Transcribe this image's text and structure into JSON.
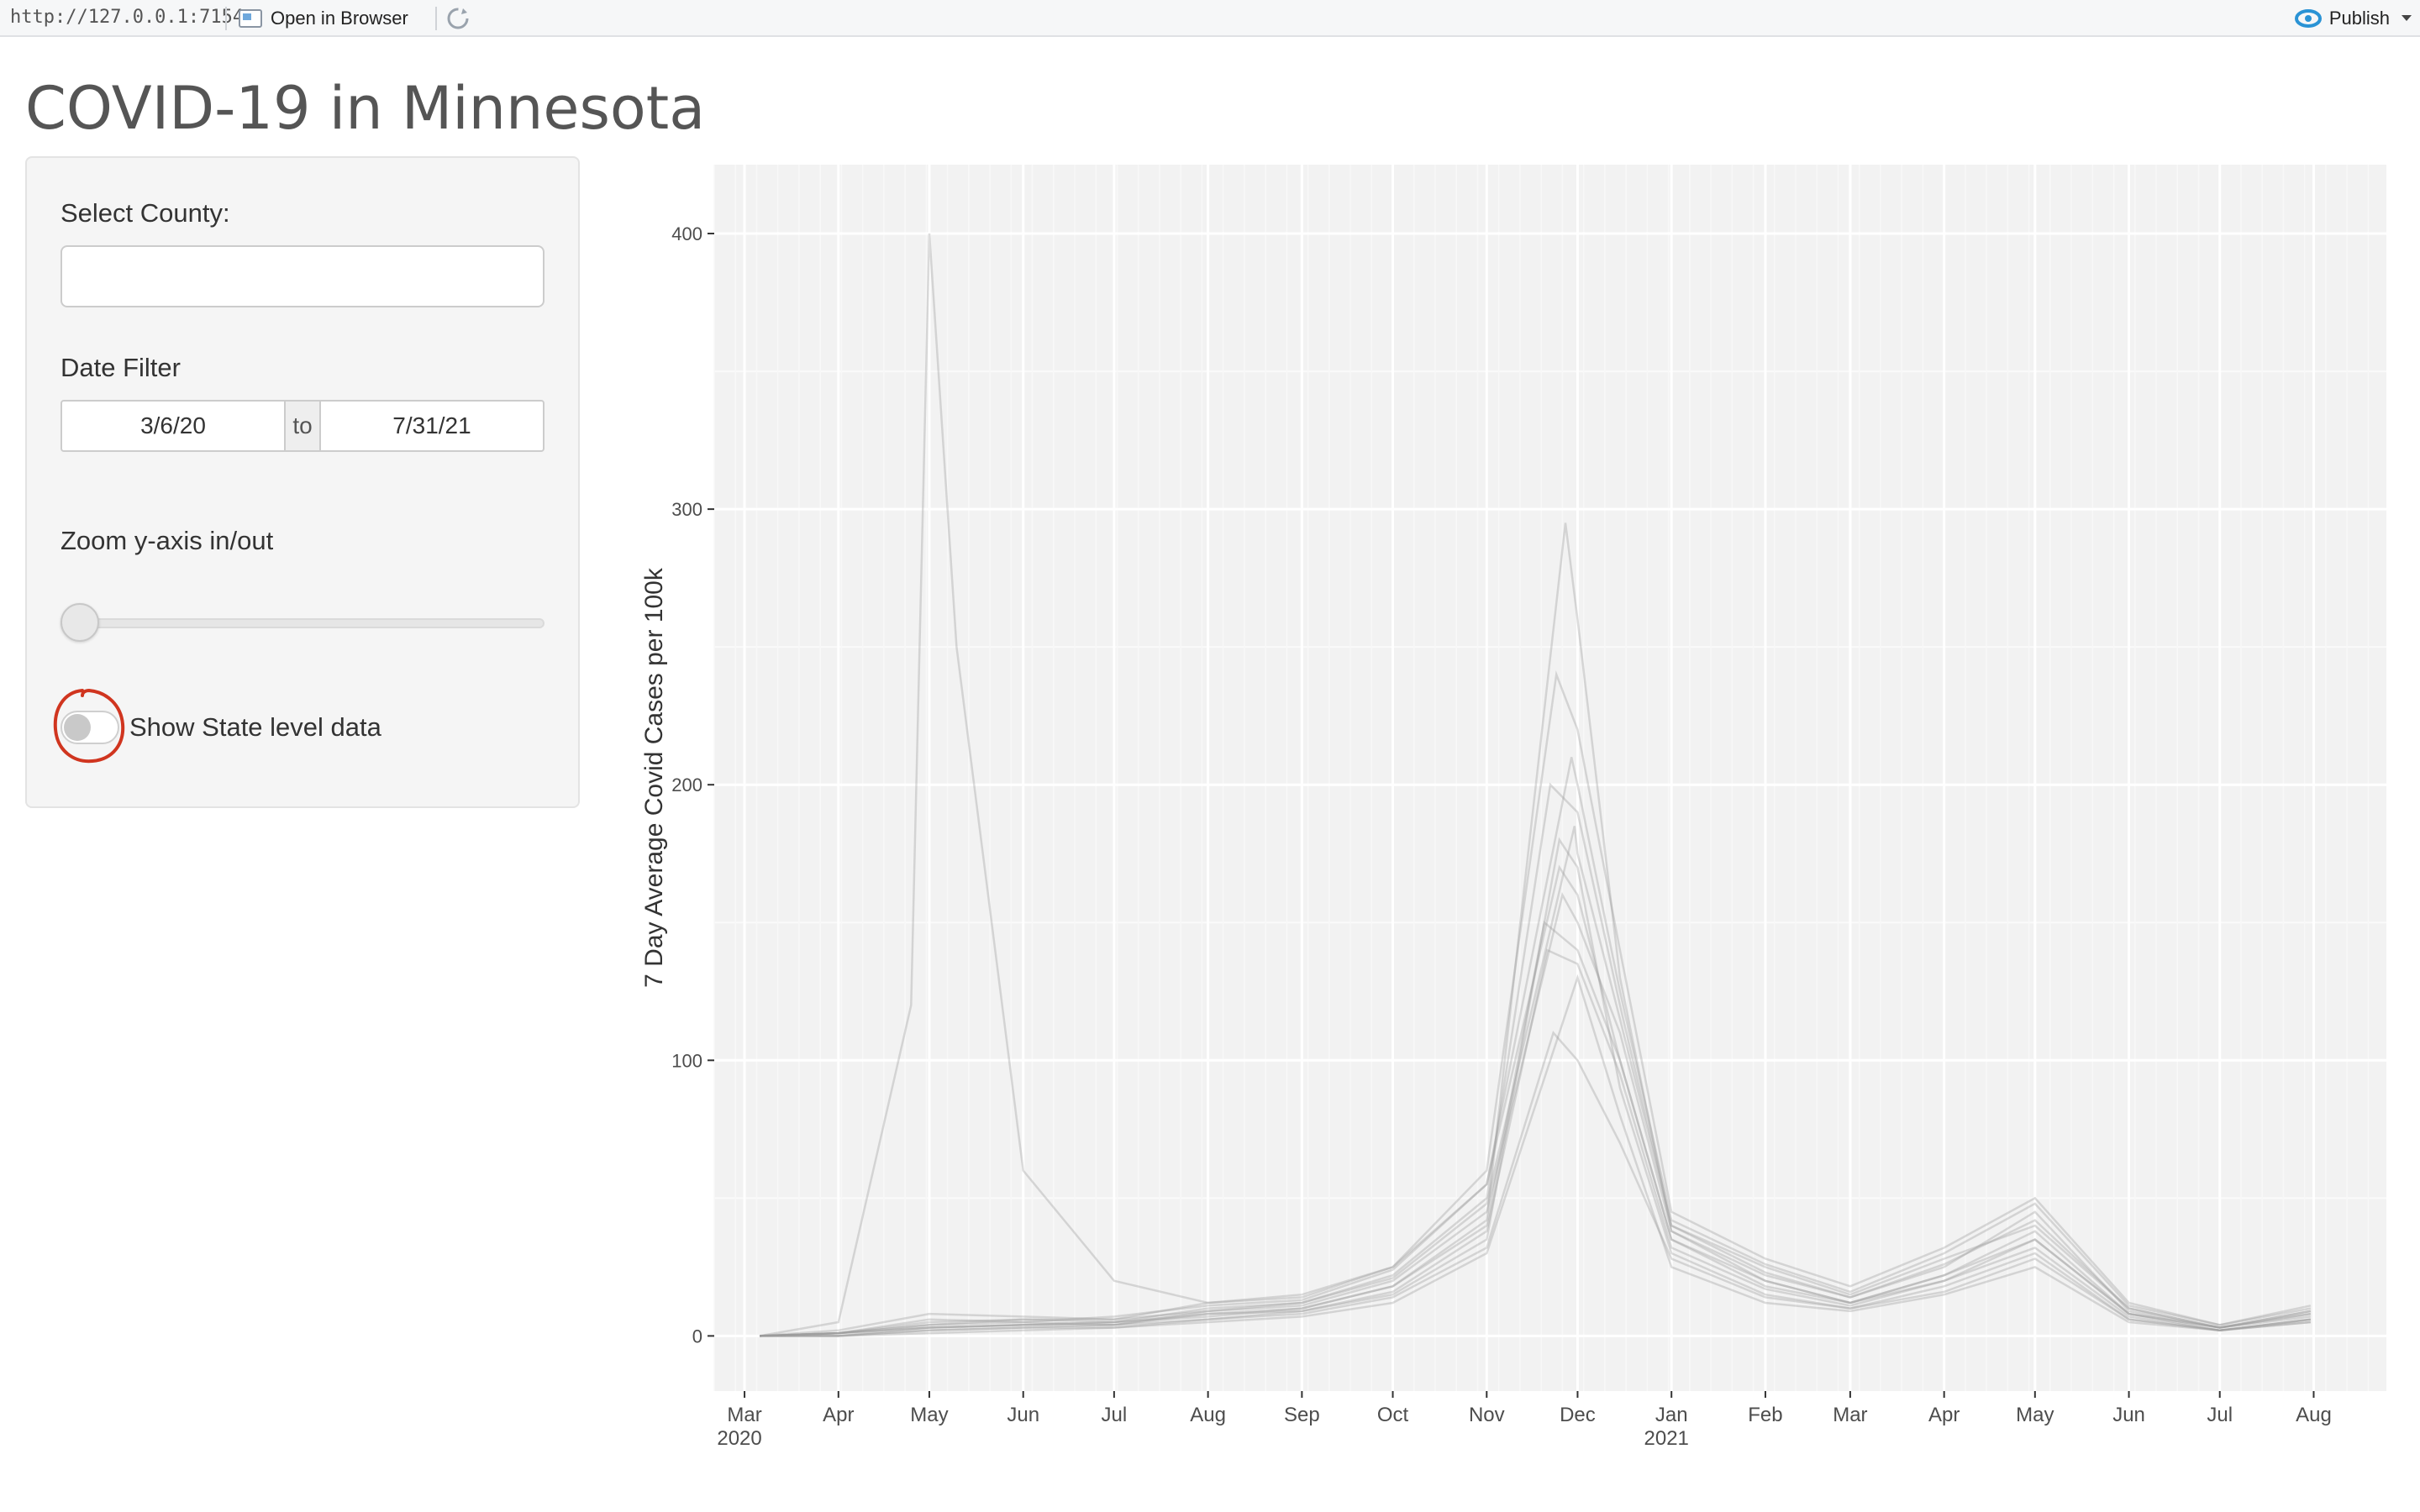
{
  "toolbar": {
    "url": "http://127.0.0.1:7154",
    "open_in_browser_label": "Open in Browser",
    "publish_label": "Publish"
  },
  "page": {
    "title": "COVID-19 in Minnesota"
  },
  "sidebar": {
    "county_label": "Select County:",
    "county_value": "",
    "date_label": "Date Filter",
    "date_start": "3/6/20",
    "date_separator": "to",
    "date_end": "7/31/21",
    "zoom_label": "Zoom y-axis in/out",
    "zoom_value_fraction": 0.0,
    "state_toggle_label": "Show State level data",
    "state_toggle_on": false,
    "highlight_color": "#d0351f"
  },
  "chart_data": {
    "type": "line",
    "title": "",
    "xlabel": "",
    "ylabel": "7 Day Average Covid Cases per 100k",
    "x_range": [
      "2020-02-20",
      "2021-08-25"
    ],
    "ylim": [
      -20,
      425
    ],
    "y_ticks": [
      0,
      100,
      200,
      300,
      400
    ],
    "x_ticks": [
      {
        "date": "2020-03-01",
        "label": "Mar",
        "year": "2020"
      },
      {
        "date": "2020-04-01",
        "label": "Apr",
        "year": ""
      },
      {
        "date": "2020-05-01",
        "label": "May",
        "year": ""
      },
      {
        "date": "2020-06-01",
        "label": "Jun",
        "year": ""
      },
      {
        "date": "2020-07-01",
        "label": "Jul",
        "year": ""
      },
      {
        "date": "2020-08-01",
        "label": "Aug",
        "year": ""
      },
      {
        "date": "2020-09-01",
        "label": "Sep",
        "year": ""
      },
      {
        "date": "2020-10-01",
        "label": "Oct",
        "year": ""
      },
      {
        "date": "2020-11-01",
        "label": "Nov",
        "year": ""
      },
      {
        "date": "2020-12-01",
        "label": "Dec",
        "year": ""
      },
      {
        "date": "2021-01-01",
        "label": "Jan",
        "year": "2021"
      },
      {
        "date": "2021-02-01",
        "label": "Feb",
        "year": ""
      },
      {
        "date": "2021-03-01",
        "label": "Mar",
        "year": ""
      },
      {
        "date": "2021-04-01",
        "label": "Apr",
        "year": ""
      },
      {
        "date": "2021-05-01",
        "label": "May",
        "year": ""
      },
      {
        "date": "2021-06-01",
        "label": "Jun",
        "year": ""
      },
      {
        "date": "2021-07-01",
        "label": "Jul",
        "year": ""
      },
      {
        "date": "2021-08-01",
        "label": "Aug",
        "year": ""
      }
    ],
    "grid": true,
    "line_color": "#9a9a9a",
    "panel_color": "#f2f2f2",
    "series_note": "one faint line per county",
    "series": [
      {
        "x": [
          "2020-03-06",
          "2020-04-01",
          "2020-05-01",
          "2020-06-01",
          "2020-07-01",
          "2020-08-01",
          "2020-09-01",
          "2020-10-01",
          "2020-11-01",
          "2020-11-20",
          "2020-12-01",
          "2020-12-15",
          "2021-01-01",
          "2021-02-01",
          "2021-03-01",
          "2021-04-01",
          "2021-05-01",
          "2021-06-01",
          "2021-07-01",
          "2021-07-31"
        ],
        "y": [
          0,
          1,
          3,
          4,
          5,
          8,
          10,
          18,
          40,
          150,
          140,
          100,
          35,
          20,
          12,
          22,
          35,
          8,
          3,
          8
        ]
      },
      {
        "x": [
          "2020-03-06",
          "2020-04-01",
          "2020-05-01",
          "2020-06-01",
          "2020-07-01",
          "2020-08-01",
          "2020-09-01",
          "2020-10-01",
          "2020-11-01",
          "2020-11-25",
          "2020-12-01",
          "2020-12-15",
          "2021-01-01",
          "2021-02-01",
          "2021-03-01",
          "2021-04-01",
          "2021-05-01",
          "2021-06-01",
          "2021-07-01",
          "2021-07-31"
        ],
        "y": [
          0,
          0,
          2,
          3,
          4,
          6,
          9,
          15,
          35,
          180,
          170,
          90,
          30,
          15,
          10,
          18,
          30,
          6,
          2,
          6
        ]
      },
      {
        "x": [
          "2020-03-06",
          "2020-04-01",
          "2020-05-01",
          "2020-06-01",
          "2020-07-01",
          "2020-08-01",
          "2020-09-01",
          "2020-10-01",
          "2020-11-01",
          "2020-11-22",
          "2020-12-01",
          "2020-12-15",
          "2021-01-01",
          "2021-02-01",
          "2021-03-01",
          "2021-04-01",
          "2021-05-01",
          "2021-06-01",
          "2021-07-01",
          "2021-07-31"
        ],
        "y": [
          0,
          1,
          5,
          6,
          5,
          10,
          12,
          22,
          50,
          200,
          190,
          120,
          40,
          25,
          15,
          28,
          40,
          10,
          3,
          9
        ]
      },
      {
        "x": [
          "2020-03-06",
          "2020-04-01",
          "2020-05-01",
          "2020-06-01",
          "2020-07-01",
          "2020-08-01",
          "2020-09-01",
          "2020-10-01",
          "2020-11-01",
          "2020-11-28",
          "2020-12-01",
          "2020-12-15",
          "2021-01-01",
          "2021-02-01",
          "2021-03-01",
          "2021-04-01",
          "2021-05-01",
          "2021-06-01",
          "2021-07-01",
          "2021-07-31"
        ],
        "y": [
          0,
          0,
          1,
          2,
          3,
          5,
          7,
          12,
          30,
          120,
          130,
          80,
          25,
          12,
          9,
          15,
          25,
          5,
          2,
          5
        ]
      },
      {
        "x": [
          "2020-03-06",
          "2020-04-01",
          "2020-05-01",
          "2020-06-01",
          "2020-07-01",
          "2020-08-01",
          "2020-09-01",
          "2020-10-01",
          "2020-11-01",
          "2020-11-24",
          "2020-12-01",
          "2020-12-15",
          "2021-01-01",
          "2021-02-01",
          "2021-03-01",
          "2021-04-01",
          "2021-05-01",
          "2021-06-01",
          "2021-07-01",
          "2021-07-31"
        ],
        "y": [
          0,
          2,
          8,
          7,
          6,
          12,
          14,
          25,
          60,
          240,
          220,
          140,
          45,
          28,
          18,
          32,
          50,
          12,
          4,
          11
        ]
      },
      {
        "x": [
          "2020-03-06",
          "2020-04-01",
          "2020-05-01",
          "2020-06-01",
          "2020-07-01",
          "2020-08-01",
          "2020-09-01",
          "2020-10-01",
          "2020-11-01",
          "2020-11-26",
          "2020-12-01",
          "2020-12-15",
          "2021-01-01",
          "2021-02-01",
          "2021-03-01",
          "2021-04-01",
          "2021-05-01",
          "2021-06-01",
          "2021-07-01",
          "2021-07-31"
        ],
        "y": [
          0,
          1,
          4,
          5,
          4,
          9,
          11,
          20,
          45,
          160,
          150,
          110,
          38,
          22,
          14,
          25,
          45,
          9,
          3,
          7
        ]
      },
      {
        "x": [
          "2020-03-06",
          "2020-04-01",
          "2020-04-25",
          "2020-05-01",
          "2020-05-10",
          "2020-06-01",
          "2020-07-01",
          "2020-08-01",
          "2020-09-01",
          "2020-10-01",
          "2020-11-01",
          "2020-11-25",
          "2020-12-01",
          "2020-12-15",
          "2021-01-01",
          "2021-02-01",
          "2021-03-01",
          "2021-04-01",
          "2021-05-01",
          "2021-06-01",
          "2021-07-01",
          "2021-07-31"
        ],
        "y": [
          0,
          5,
          120,
          400,
          250,
          60,
          20,
          12,
          15,
          25,
          55,
          170,
          160,
          100,
          35,
          18,
          12,
          20,
          35,
          8,
          2,
          6
        ]
      },
      {
        "x": [
          "2020-03-06",
          "2020-04-01",
          "2020-05-01",
          "2020-06-01",
          "2020-07-01",
          "2020-08-01",
          "2020-09-01",
          "2020-10-01",
          "2020-11-01",
          "2020-11-27",
          "2020-12-01",
          "2020-12-15",
          "2021-01-01",
          "2021-02-01",
          "2021-03-01",
          "2021-04-01",
          "2021-05-01",
          "2021-06-01",
          "2021-07-01",
          "2021-07-31"
        ],
        "y": [
          0,
          1,
          3,
          4,
          5,
          7,
          10,
          18,
          42,
          295,
          260,
          130,
          38,
          20,
          12,
          22,
          38,
          8,
          3,
          8
        ]
      },
      {
        "x": [
          "2020-03-06",
          "2020-04-01",
          "2020-05-01",
          "2020-06-01",
          "2020-07-01",
          "2020-08-01",
          "2020-09-01",
          "2020-10-01",
          "2020-11-01",
          "2020-11-23",
          "2020-12-01",
          "2020-12-15",
          "2021-01-01",
          "2021-02-01",
          "2021-03-01",
          "2021-04-01",
          "2021-05-01",
          "2021-06-01",
          "2021-07-01",
          "2021-07-31"
        ],
        "y": [
          0,
          0,
          2,
          3,
          3,
          6,
          8,
          14,
          32,
          110,
          100,
          70,
          28,
          14,
          10,
          16,
          28,
          6,
          2,
          5
        ]
      },
      {
        "x": [
          "2020-03-06",
          "2020-04-01",
          "2020-05-01",
          "2020-06-01",
          "2020-07-01",
          "2020-08-01",
          "2020-09-01",
          "2020-10-01",
          "2020-11-01",
          "2020-11-29",
          "2020-12-01",
          "2020-12-15",
          "2021-01-01",
          "2021-02-01",
          "2021-03-01",
          "2021-04-01",
          "2021-05-01",
          "2021-06-01",
          "2021-07-01",
          "2021-07-31"
        ],
        "y": [
          0,
          1,
          6,
          5,
          7,
          11,
          13,
          24,
          55,
          210,
          200,
          125,
          42,
          26,
          16,
          30,
          48,
          11,
          4,
          10
        ]
      },
      {
        "x": [
          "2020-03-06",
          "2020-04-01",
          "2020-05-01",
          "2020-06-01",
          "2020-07-01",
          "2020-08-01",
          "2020-09-01",
          "2020-10-01",
          "2020-11-01",
          "2020-11-21",
          "2020-12-01",
          "2020-12-15",
          "2021-01-01",
          "2021-02-01",
          "2021-03-01",
          "2021-04-01",
          "2021-05-01",
          "2021-06-01",
          "2021-07-01",
          "2021-07-31"
        ],
        "y": [
          0,
          0,
          3,
          4,
          4,
          8,
          9,
          16,
          38,
          140,
          135,
          95,
          32,
          17,
          11,
          20,
          32,
          7,
          2,
          6
        ]
      },
      {
        "x": [
          "2020-03-06",
          "2020-04-01",
          "2020-05-01",
          "2020-06-01",
          "2020-07-01",
          "2020-08-01",
          "2020-09-01",
          "2020-10-01",
          "2020-11-01",
          "2020-11-30",
          "2020-12-01",
          "2020-12-15",
          "2021-01-01",
          "2021-02-01",
          "2021-03-01",
          "2021-04-01",
          "2021-05-01",
          "2021-06-01",
          "2021-07-01",
          "2021-07-31"
        ],
        "y": [
          0,
          1,
          4,
          6,
          6,
          9,
          12,
          21,
          48,
          185,
          175,
          115,
          40,
          23,
          14,
          26,
          42,
          10,
          3,
          9
        ]
      }
    ]
  }
}
